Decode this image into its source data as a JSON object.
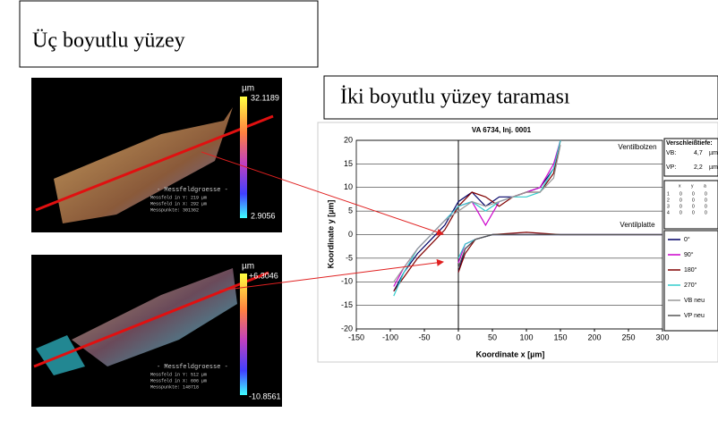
{
  "labels": {
    "three_d": "Üç boyutlu yüzey",
    "two_d": "İki boyutlu yüzey taraması"
  },
  "images": [
    {
      "unit": "µm",
      "max": "32.1189",
      "min": "2.9056",
      "info_title": "- Messfeldgroesse -",
      "info_lines": [
        "Messfeld in Y:   219   µm",
        "Messfeld in X:   292   µm",
        "Messpunkte:      301362"
      ]
    },
    {
      "unit": "µm",
      "max": "+6.3046",
      "min": "-10.8561",
      "info_title": "- Messfeldgroesse -",
      "info_lines": [
        "Messfeld in Y:   512   µm",
        "Messfeld in X:   606   µm",
        "Messpunkte:      148718"
      ]
    }
  ],
  "side_panel": {
    "title": "Verschleißtiefe:",
    "rows": [
      [
        "VB:",
        "4,7",
        "µm"
      ],
      [
        "VP:",
        "2,2",
        "µm"
      ]
    ],
    "table_header": [
      "x",
      "y",
      "a"
    ],
    "table_rows": [
      [
        "1",
        "0",
        "0",
        "0"
      ],
      [
        "2",
        "0",
        "0",
        "0"
      ],
      [
        "3",
        "0",
        "0",
        "0"
      ],
      [
        "4",
        "0",
        "0",
        "0"
      ]
    ]
  },
  "chart_data": {
    "type": "line",
    "title": "VA 6734, Inj. 0001",
    "x_label": "Koordinate x [µm]",
    "y_label": "Koordinate y [µm]",
    "annotations": [
      "Ventilbolzen",
      "Ventilplatte"
    ],
    "x": [
      -95,
      -80,
      -60,
      -40,
      -20,
      0,
      20,
      40,
      60,
      80,
      100,
      120,
      140,
      150,
      null,
      0,
      10,
      25,
      50,
      100,
      150,
      200,
      250,
      300
    ],
    "series": [
      {
        "name": "0°",
        "color": "#000066",
        "values": [
          -12,
          -8,
          -4,
          -1,
          2,
          7,
          9,
          6,
          8,
          8,
          9,
          10,
          14,
          20,
          null,
          -8,
          -3,
          -1,
          0,
          0,
          0,
          0,
          0,
          0
        ]
      },
      {
        "name": "90°",
        "color": "#cc00cc",
        "values": [
          -11,
          -7,
          -3,
          0,
          3,
          6,
          7,
          2,
          7,
          8,
          9,
          10,
          15,
          20,
          null,
          -6,
          -2,
          -1,
          0,
          0,
          0,
          0,
          0,
          0
        ]
      },
      {
        "name": "180°",
        "color": "#800000",
        "values": [
          -12,
          -9,
          -5,
          -2,
          1,
          6,
          9,
          8,
          6,
          8,
          9,
          9,
          13,
          20,
          null,
          -8,
          -4,
          -1,
          0,
          0.5,
          0,
          0,
          0,
          0
        ]
      },
      {
        "name": "270°",
        "color": "#33cccc",
        "values": [
          -13,
          -8,
          -3,
          0,
          3,
          6,
          7,
          5,
          7,
          8,
          8,
          9,
          14,
          20,
          null,
          -5,
          -2,
          -1,
          0,
          0,
          0,
          0,
          0,
          0
        ]
      },
      {
        "name": "VB neu",
        "color": "#999999",
        "values": [
          -10,
          -7,
          -3,
          0,
          3,
          5,
          7,
          6,
          7,
          8,
          9,
          9,
          12,
          19,
          null,
          null,
          null,
          null,
          null,
          null,
          null,
          null,
          null,
          null
        ]
      },
      {
        "name": "VP neu",
        "color": "#555555",
        "values": [
          null,
          null,
          null,
          null,
          null,
          null,
          null,
          null,
          null,
          null,
          null,
          null,
          null,
          null,
          null,
          -7,
          -3,
          -1,
          0,
          0,
          0,
          0,
          0,
          0
        ]
      }
    ],
    "xlim": [
      -150,
      300
    ],
    "xticks": [
      -150,
      -100,
      -50,
      0,
      50,
      100,
      150,
      200,
      250,
      300
    ],
    "ylim": [
      -20,
      20
    ],
    "yticks": [
      -20,
      -15,
      -10,
      -5,
      0,
      5,
      10,
      15,
      20
    ],
    "grid": true
  }
}
